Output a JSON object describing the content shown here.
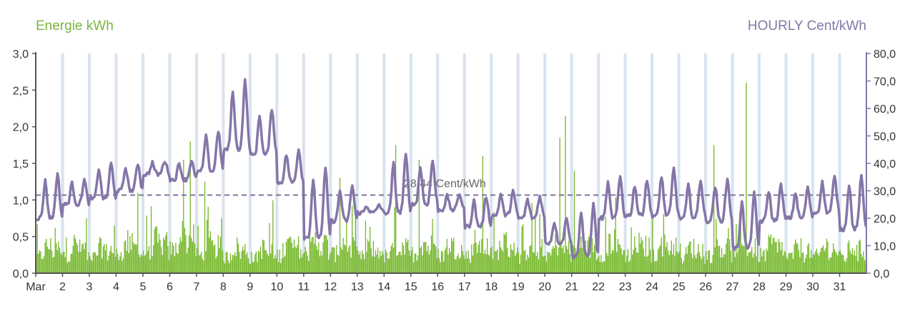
{
  "chart_data": {
    "type": "bar+line",
    "left_axis": {
      "label": "Energie kWh",
      "ylim": [
        0,
        3
      ],
      "ticks": [
        "0,0",
        "0,5",
        "1,0",
        "1,5",
        "2,0",
        "2,5",
        "3,0"
      ],
      "tick_values": [
        0,
        0.5,
        1,
        1.5,
        2,
        2.5,
        3
      ]
    },
    "right_axis": {
      "label": "HOURLY Cent/kWh",
      "ylim": [
        0,
        80
      ],
      "ticks": [
        "0,0",
        "10,0",
        "20,0",
        "30,0",
        "40,0",
        "50,0",
        "60,0",
        "70,0",
        "80,0"
      ],
      "tick_values": [
        0,
        10,
        20,
        30,
        40,
        50,
        60,
        70,
        80
      ]
    },
    "x_axis": {
      "days": 31,
      "tick_labels": [
        "Mar",
        "2",
        "3",
        "4",
        "5",
        "6",
        "7",
        "8",
        "9",
        "10",
        "11",
        "12",
        "13",
        "14",
        "15",
        "16",
        "17",
        "18",
        "19",
        "20",
        "21",
        "22",
        "23",
        "24",
        "25",
        "26",
        "27",
        "28",
        "29",
        "30",
        "31"
      ]
    },
    "average": {
      "value": 28.44,
      "label": "28,44 Cent/kWh"
    },
    "series": [
      {
        "name": "Energie kWh",
        "kind": "bar",
        "axis": "left",
        "color": "#76b82a",
        "day_avg": [
          0.42,
          0.45,
          0.4,
          0.48,
          0.5,
          0.58,
          0.45,
          0.4,
          0.38,
          0.45,
          0.5,
          0.48,
          0.4,
          0.42,
          0.48,
          0.45,
          0.45,
          0.48,
          0.4,
          0.45,
          0.5,
          0.48,
          0.45,
          0.48,
          0.4,
          0.45,
          0.42,
          0.45,
          0.4,
          0.42,
          0.4
        ],
        "peaks": [
          {
            "day": 4,
            "hour": 19,
            "value": 1.1
          },
          {
            "day": 6,
            "hour": 12,
            "value": 1.55
          },
          {
            "day": 6,
            "hour": 18,
            "value": 1.8
          },
          {
            "day": 7,
            "hour": 7,
            "value": 1.25
          },
          {
            "day": 12,
            "hour": 8,
            "value": 1.3
          },
          {
            "day": 14,
            "hour": 10,
            "value": 1.75
          },
          {
            "day": 15,
            "hour": 7,
            "value": 1.55
          },
          {
            "day": 17,
            "hour": 16,
            "value": 1.6
          },
          {
            "day": 20,
            "hour": 13,
            "value": 1.85
          },
          {
            "day": 20,
            "hour": 18,
            "value": 2.15
          },
          {
            "day": 21,
            "hour": 2,
            "value": 1.4
          },
          {
            "day": 26,
            "hour": 7,
            "value": 1.75
          },
          {
            "day": 27,
            "hour": 12,
            "value": 2.6
          }
        ]
      },
      {
        "name": "HOURLY Cent/kWh",
        "kind": "line",
        "axis": "right",
        "color": "#8476a8",
        "daily": [
          {
            "day": 1,
            "base": 20,
            "peak": 36
          },
          {
            "day": 2,
            "base": 25,
            "peak": 34
          },
          {
            "day": 3,
            "base": 27,
            "peak": 40
          },
          {
            "day": 4,
            "base": 30,
            "peak": 40
          },
          {
            "day": 5,
            "base": 36,
            "peak": 41
          },
          {
            "day": 6,
            "base": 34,
            "peak": 41
          },
          {
            "day": 7,
            "base": 37,
            "peak": 52
          },
          {
            "day": 8,
            "base": 45,
            "peak": 70
          },
          {
            "day": 9,
            "base": 43,
            "peak": 60
          },
          {
            "day": 10,
            "base": 33,
            "peak": 45
          },
          {
            "day": 11,
            "base": 13,
            "peak": 38
          },
          {
            "day": 12,
            "base": 19,
            "peak": 32
          },
          {
            "day": 13,
            "base": 22,
            "peak": 25
          },
          {
            "day": 14,
            "base": 22,
            "peak": 43
          },
          {
            "day": 15,
            "base": 25,
            "peak": 41
          },
          {
            "day": 16,
            "base": 23,
            "peak": 29
          },
          {
            "day": 17,
            "base": 17,
            "peak": 28
          },
          {
            "day": 18,
            "base": 21,
            "peak": 30
          },
          {
            "day": 19,
            "base": 20,
            "peak": 28
          },
          {
            "day": 20,
            "base": 11,
            "peak": 20
          },
          {
            "day": 21,
            "base": 6,
            "peak": 25
          },
          {
            "day": 22,
            "base": 20,
            "peak": 35
          },
          {
            "day": 23,
            "base": 21,
            "peak": 34
          },
          {
            "day": 24,
            "base": 21,
            "peak": 38
          },
          {
            "day": 25,
            "base": 20,
            "peak": 34
          },
          {
            "day": 26,
            "base": 19,
            "peak": 34
          },
          {
            "day": 27,
            "base": 9,
            "peak": 29
          },
          {
            "day": 28,
            "base": 19,
            "peak": 32
          },
          {
            "day": 29,
            "base": 20,
            "peak": 31
          },
          {
            "day": 30,
            "base": 22,
            "peak": 35
          },
          {
            "day": 31,
            "base": 16,
            "peak": 35
          }
        ]
      }
    ],
    "grid": {
      "vertical_bands": true,
      "band_color": "#d8e3ef"
    },
    "colors": {
      "energy": "#76b82a",
      "price": "#8476a8",
      "axis": "#555555",
      "right_axis": "#8476a8"
    }
  }
}
